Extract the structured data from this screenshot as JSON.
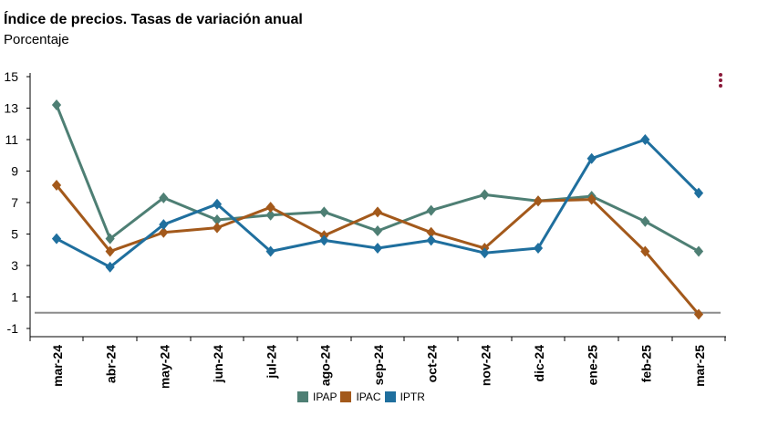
{
  "header": {
    "title": "Índice de precios. Tasas de variación anual",
    "subtitle": "Porcentaje"
  },
  "menu": {
    "icon": "vertical-dots-menu-icon"
  },
  "chart_data": {
    "type": "line",
    "title": "Índice de precios. Tasas de variación anual",
    "subtitle": "Porcentaje",
    "xlabel": "",
    "ylabel": "",
    "ylim": [
      -1,
      15
    ],
    "yticks": [
      15,
      13,
      11,
      9,
      7,
      5,
      3,
      1,
      -1
    ],
    "reference_line": 0,
    "categories": [
      "mar-24",
      "abr-24",
      "may-24",
      "jun-24",
      "jul-24",
      "ago-24",
      "sep-24",
      "oct-24",
      "nov-24",
      "dic-24",
      "ene-25",
      "feb-25",
      "mar-25"
    ],
    "legend_position": "bottom",
    "series": [
      {
        "name": "IPAP",
        "color": "#4e7f74",
        "values": [
          13.2,
          4.7,
          7.3,
          5.9,
          6.2,
          6.4,
          5.2,
          6.5,
          7.5,
          7.1,
          7.4,
          5.8,
          3.9
        ]
      },
      {
        "name": "IPAC",
        "color": "#a3591b",
        "values": [
          8.1,
          3.9,
          5.1,
          5.4,
          6.7,
          4.9,
          6.4,
          5.1,
          4.1,
          7.1,
          7.2,
          3.9,
          -0.1
        ]
      },
      {
        "name": "IPTR",
        "color": "#1f6f9e",
        "values": [
          4.7,
          2.9,
          5.6,
          6.9,
          3.9,
          4.6,
          4.1,
          4.6,
          3.8,
          4.1,
          9.8,
          11.0,
          7.6
        ]
      }
    ]
  }
}
